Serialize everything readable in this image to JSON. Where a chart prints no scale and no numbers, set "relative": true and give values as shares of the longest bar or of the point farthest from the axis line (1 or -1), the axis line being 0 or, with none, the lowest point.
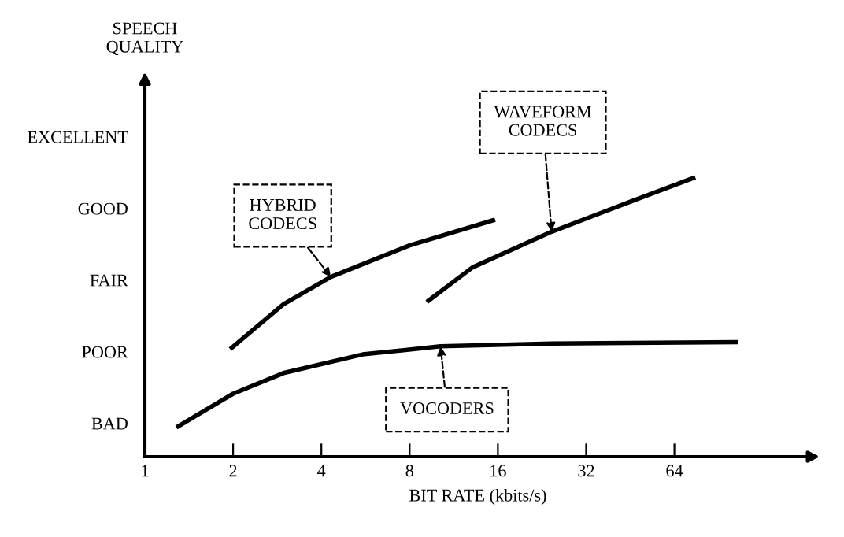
{
  "chart_data": {
    "type": "line",
    "xlabel": "BIT RATE (kbits/s)",
    "log": "x",
    "grid": false,
    "legend": false,
    "marker": "none",
    "line_style": "solid",
    "relative": true,
    "xlim": [
      1,
      187
    ],
    "xticks": [
      1,
      2,
      4,
      8,
      16,
      32,
      64
    ],
    "series": [
      {
        "color": "#000000",
        "x": [
          1.3,
          2,
          2.97,
          5.53,
          10.2,
          24.4,
          103.6
        ],
        "values": [
          0.109,
          0.226,
          0.3,
          0.367,
          0.396,
          0.406,
          0.411
        ]
      },
      {
        "color": "#000000",
        "x": [
          1.98,
          2.97,
          4.31,
          8,
          15.4
        ],
        "values": [
          0.391,
          0.547,
          0.645,
          0.758,
          0.848
        ]
      },
      {
        "color": "#000000",
        "x": [
          9.28,
          13.1,
          24.4,
          45.3,
          74.2
        ],
        "values": [
          0.56,
          0.679,
          0.807,
          0.915,
          1
        ]
      }
    ],
    "annotations": [
      "SPEECH\nQUALITY",
      "BAD",
      "POOR",
      "FAIR",
      "GOOD",
      "EXCELLENT",
      {
        "text": "HYBRID\nCODECS",
        "x": 4.31,
        "y": 0.645
      },
      {
        "text": "WAVEFORM\nCODECS",
        "x": 24.4,
        "y": 0.807
      },
      {
        "text": "VOCODERS",
        "x": 10.2,
        "y": 0.396
      }
    ]
  }
}
